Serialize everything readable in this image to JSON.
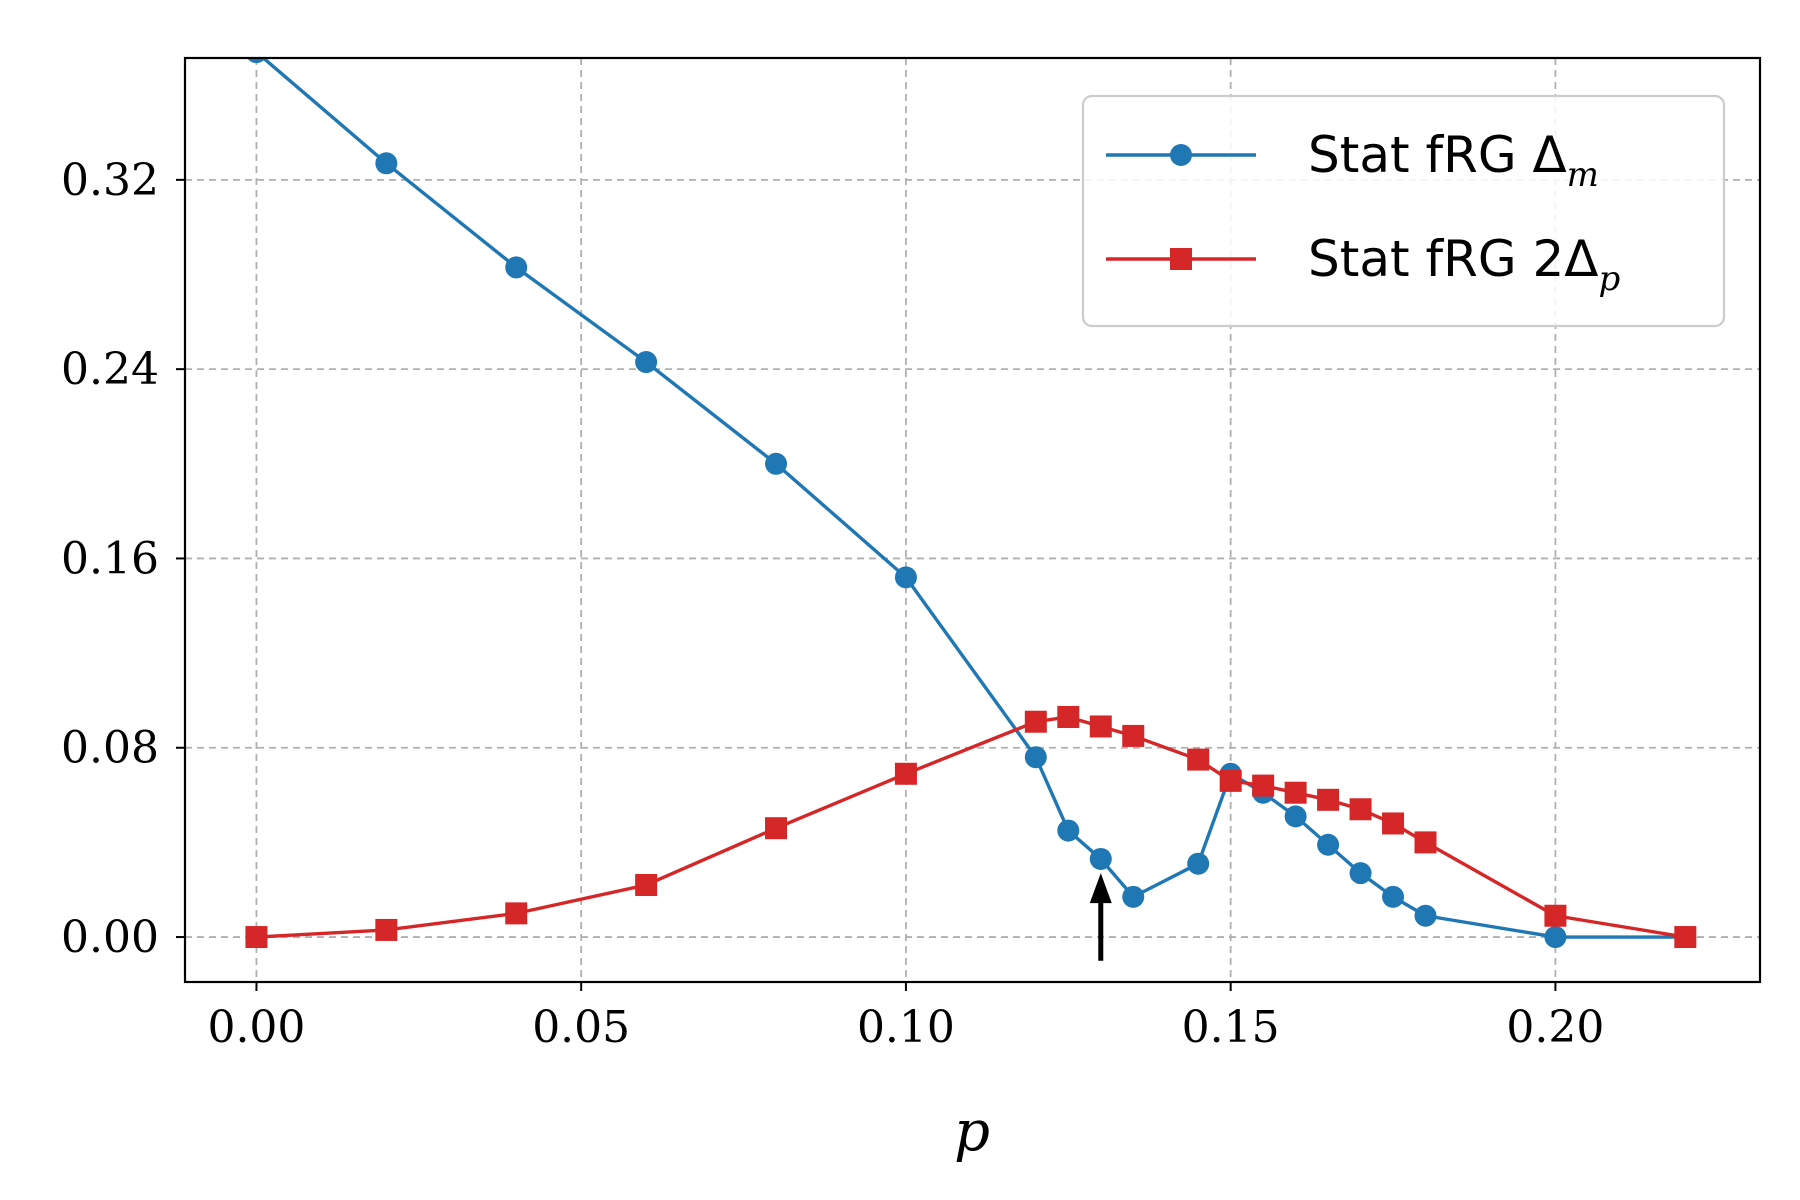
{
  "chart_data": {
    "type": "line",
    "xlabel": "p",
    "ylabel": "",
    "xlim": [
      -0.011,
      0.2315
    ],
    "ylim": [
      -0.019,
      0.3715
    ],
    "xticks": [
      0.0,
      0.05,
      0.1,
      0.15,
      0.2
    ],
    "xtick_labels": [
      "0.00",
      "0.05",
      "0.10",
      "0.15",
      "0.20"
    ],
    "yticks": [
      0.0,
      0.08,
      0.16,
      0.24,
      0.32
    ],
    "ytick_labels": [
      "0.00",
      "0.08",
      "0.16",
      "0.24",
      "0.32"
    ],
    "grid": true,
    "legend_position": "top-right",
    "series": [
      {
        "name": "Stat fRG Δm",
        "legend_main": "Stat fRG Δ",
        "legend_sub": "m",
        "color": "#1f77b4",
        "marker": "circle",
        "x": [
          0.0,
          0.02,
          0.04,
          0.06,
          0.08,
          0.1,
          0.12,
          0.125,
          0.13,
          0.135,
          0.145,
          0.15,
          0.155,
          0.16,
          0.165,
          0.17,
          0.175,
          0.18,
          0.2,
          0.22
        ],
        "y": [
          0.374,
          0.327,
          0.283,
          0.243,
          0.2,
          0.152,
          0.076,
          0.045,
          0.033,
          0.017,
          0.031,
          0.069,
          0.061,
          0.051,
          0.039,
          0.027,
          0.017,
          0.009,
          0.0,
          0.0
        ]
      },
      {
        "name": "Stat fRG 2Δp",
        "legend_main": "Stat fRG 2Δ",
        "legend_sub": "p",
        "color": "#d62728",
        "marker": "square",
        "x": [
          0.0,
          0.02,
          0.04,
          0.06,
          0.08,
          0.1,
          0.12,
          0.125,
          0.13,
          0.135,
          0.145,
          0.15,
          0.155,
          0.16,
          0.165,
          0.17,
          0.175,
          0.18,
          0.2,
          0.22
        ],
        "y": [
          0.0,
          0.003,
          0.01,
          0.022,
          0.046,
          0.069,
          0.091,
          0.093,
          0.089,
          0.085,
          0.075,
          0.066,
          0.064,
          0.061,
          0.058,
          0.054,
          0.048,
          0.04,
          0.009,
          0.0
        ]
      }
    ],
    "annotations": [
      {
        "type": "arrow",
        "x": 0.13,
        "y_from": -0.01,
        "y_to": 0.027,
        "color": "#000000"
      }
    ]
  }
}
